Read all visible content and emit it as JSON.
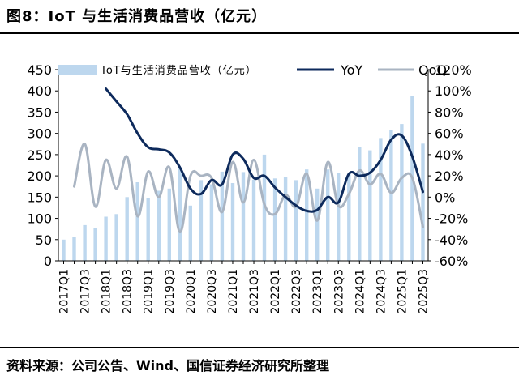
{
  "header": {
    "title": "图8：IoT 与生活消费品营收（亿元）"
  },
  "footer": {
    "source": "资料来源：公司公告、Wind、国信证券经济研究所整理"
  },
  "chart_data": {
    "type": "bar+line",
    "categories": [
      "2017Q1",
      "2017Q2",
      "2017Q3",
      "2017Q4",
      "2018Q1",
      "2018Q2",
      "2018Q3",
      "2018Q4",
      "2019Q1",
      "2019Q2",
      "2019Q3",
      "2019Q4",
      "2020Q1",
      "2020Q2",
      "2020Q3",
      "2020Q4",
      "2021Q1",
      "2021Q2",
      "2021Q3",
      "2021Q4",
      "2022Q1",
      "2022Q2",
      "2022Q3",
      "2022Q4",
      "2023Q1",
      "2023Q2",
      "2023Q3",
      "2023Q4",
      "2024Q1",
      "2024Q2",
      "2024Q3",
      "2024Q4",
      "2025Q1",
      "2025Q2",
      "2025Q3"
    ],
    "x_tick_labels": [
      "2017Q1",
      "2017Q3",
      "2018Q1",
      "2018Q3",
      "2019Q1",
      "2019Q3",
      "2020Q1",
      "2020Q3",
      "2021Q1",
      "2021Q3",
      "2022Q1",
      "2022Q3",
      "2023Q1",
      "2023Q3",
      "2024Q1",
      "2024Q3",
      "2025Q1",
      "2025Q3"
    ],
    "series": [
      {
        "name": "IoT与生活消费品营收（亿元）",
        "type": "bar",
        "axis": "left",
        "color": "#bdd7ee",
        "values": [
          50,
          57,
          84,
          77,
          104,
          110,
          150,
          185,
          148,
          165,
          170,
          220,
          130,
          190,
          180,
          210,
          183,
          209,
          191,
          250,
          194,
          198,
          190,
          215,
          170,
          215,
          206,
          205,
          268,
          260,
          289,
          308,
          322,
          387,
          276
        ]
      },
      {
        "name": "YoY",
        "type": "line",
        "axis": "right",
        "color": "#0d2a5c",
        "values": [
          null,
          null,
          null,
          null,
          102,
          90,
          78,
          60,
          47,
          45,
          42,
          28,
          8,
          3,
          16,
          12,
          40,
          36,
          18,
          20,
          9,
          0,
          -8,
          -13,
          -12,
          0,
          -5,
          22,
          20,
          23,
          35,
          54,
          58,
          38,
          5
        ]
      },
      {
        "name": "QoQ",
        "type": "line",
        "axis": "right",
        "color": "#a9b4c2",
        "values": [
          null,
          10,
          50,
          -9,
          35,
          8,
          38,
          -18,
          24,
          0,
          28,
          -33,
          20,
          20,
          18,
          -14,
          33,
          -5,
          35,
          -7,
          -16,
          2,
          -9,
          22,
          -22,
          33,
          -8,
          3,
          25,
          12,
          22,
          4,
          18,
          18,
          -28
        ]
      }
    ],
    "left_axis": {
      "min": 0,
      "max": 450,
      "step": 50,
      "ticks": [
        "0",
        "50",
        "100",
        "150",
        "200",
        "250",
        "300",
        "350",
        "400",
        "450"
      ]
    },
    "right_axis": {
      "min": -60,
      "max": 120,
      "step": 20,
      "ticks": [
        "-60%",
        "-40%",
        "-20%",
        "0%",
        "20%",
        "40%",
        "60%",
        "80%",
        "100%",
        "120%"
      ]
    },
    "legend": {
      "position": "top",
      "labels": [
        "IoT与生活消费品营收（亿元）",
        "YoY",
        "QoQ"
      ]
    }
  }
}
